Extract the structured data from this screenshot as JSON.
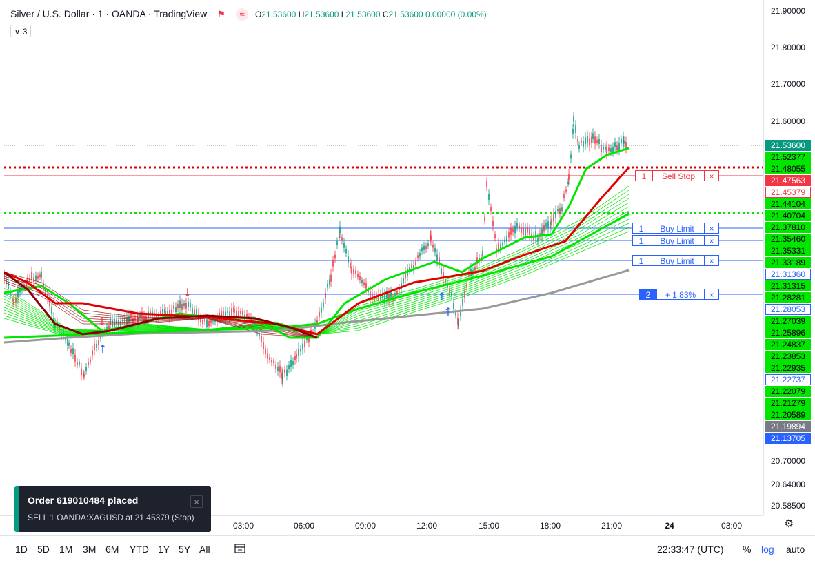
{
  "legend": {
    "title": "Silver / U.S. Dollar · 1 · OANDA · TradingView",
    "open_label": "O",
    "open": "21.53600",
    "high_label": "H",
    "high": "21.53600",
    "low_label": "L",
    "low": "21.53600",
    "close_label": "C",
    "close": "21.53600",
    "change": "0.00000 (0.00%)",
    "collapse_count": "3"
  },
  "price_scale": {
    "ticks": [
      "21.90000",
      "21.80000",
      "21.70000",
      "21.60000",
      "20.70000",
      "20.64000",
      "20.58500"
    ],
    "labels": [
      {
        "text": "21.53600",
        "bg": "#089981",
        "fg": "#ffffff"
      },
      {
        "text": "21.52377",
        "bg": "#00e600",
        "fg": "#000000"
      },
      {
        "text": "21.48055",
        "bg": "#00e600",
        "fg": "#000000"
      },
      {
        "text": "21.47563",
        "bg": "#f23645",
        "fg": "#ffffff"
      },
      {
        "text": "21.45379",
        "bg": "#ffffff",
        "fg": "#f23645",
        "border": "#f23645"
      },
      {
        "text": "21.44104",
        "bg": "#00e600",
        "fg": "#000000"
      },
      {
        "text": "21.40704",
        "bg": "#00e600",
        "fg": "#000000"
      },
      {
        "text": "21.37810",
        "bg": "#00e600",
        "fg": "#000000"
      },
      {
        "text": "21.35460",
        "bg": "#00e600",
        "fg": "#000000"
      },
      {
        "text": "21.35331",
        "bg": "#00e600",
        "fg": "#000000"
      },
      {
        "text": "21.33189",
        "bg": "#00e600",
        "fg": "#000000"
      },
      {
        "text": "21.31360",
        "bg": "#ffffff",
        "fg": "#2962ff",
        "border": "#2962ff"
      },
      {
        "text": "21.31315",
        "bg": "#00e600",
        "fg": "#000000"
      },
      {
        "text": "21.28281",
        "bg": "#00e600",
        "fg": "#000000"
      },
      {
        "text": "21.28053",
        "bg": "#ffffff",
        "fg": "#2962ff",
        "border": "#2962ff"
      },
      {
        "text": "21.27039",
        "bg": "#00e600",
        "fg": "#000000"
      },
      {
        "text": "21.25896",
        "bg": "#00e600",
        "fg": "#000000"
      },
      {
        "text": "21.24837",
        "bg": "#00e600",
        "fg": "#000000"
      },
      {
        "text": "21.23853",
        "bg": "#00e600",
        "fg": "#000000"
      },
      {
        "text": "21.22935",
        "bg": "#00e600",
        "fg": "#000000"
      },
      {
        "text": "21.22737",
        "bg": "#ffffff",
        "fg": "#2962ff",
        "border": "#2962ff"
      },
      {
        "text": "21.22079",
        "bg": "#00e600",
        "fg": "#000000"
      },
      {
        "text": "21.21279",
        "bg": "#00e600",
        "fg": "#000000"
      },
      {
        "text": "21.20589",
        "bg": "#00e600",
        "fg": "#000000"
      },
      {
        "text": "21.19894",
        "bg": "#787b86",
        "fg": "#ffffff"
      },
      {
        "text": "21.13705",
        "bg": "#2962ff",
        "fg": "#ffffff"
      }
    ]
  },
  "orders": [
    {
      "qty": "1",
      "label": "Sell Stop",
      "color": "#f23645",
      "close": "×"
    },
    {
      "qty": "1",
      "label": "Buy Limit",
      "color": "#2962ff",
      "close": "×"
    },
    {
      "qty": "1",
      "label": "Buy Limit",
      "color": "#2962ff",
      "close": "×"
    },
    {
      "qty": "1",
      "label": "Buy Limit",
      "color": "#2962ff",
      "close": "×"
    },
    {
      "qty": "2",
      "label": "+ 1.83%",
      "color": "#2962ff",
      "close": "×"
    }
  ],
  "time_axis": {
    "labels": [
      {
        "text": "03:00",
        "bold": false
      },
      {
        "text": "06:00",
        "bold": false
      },
      {
        "text": "09:00",
        "bold": false
      },
      {
        "text": "12:00",
        "bold": false
      },
      {
        "text": "15:00",
        "bold": false
      },
      {
        "text": "18:00",
        "bold": false
      },
      {
        "text": "21:00",
        "bold": false
      },
      {
        "text": "24",
        "bold": true
      },
      {
        "text": "03:00",
        "bold": false
      }
    ]
  },
  "ranges": [
    "1D",
    "5D",
    "1M",
    "3M",
    "6M",
    "YTD",
    "1Y",
    "5Y",
    "All"
  ],
  "bottom": {
    "clock": "22:33:47 (UTC)",
    "percent": "%",
    "log": "log",
    "auto": "auto"
  },
  "toast": {
    "title": "Order 619010484 placed",
    "message": "SELL 1 OANDA:XAGUSD at 21.45379  (Stop)",
    "close": "×"
  },
  "icons": {
    "flag": "flag-icon",
    "indicator": "indicator-icon",
    "gear": "gear-icon",
    "compare": "date-range-icon"
  },
  "colors": {
    "up": "#089981",
    "down": "#f23645",
    "ema_green": "#00e600",
    "ema_red": "#e00000",
    "ribbon_gray": "#999999",
    "buy": "#2962ff"
  }
}
